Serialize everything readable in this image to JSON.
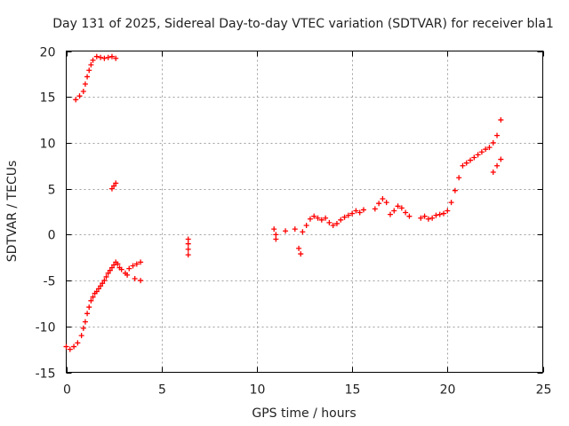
{
  "chart_data": {
    "type": "scatter",
    "title": "Day 131 of 2025, Sidereal Day-to-day VTEC variation (SDTVAR) for receiver bla1",
    "xlabel": "GPS time / hours",
    "ylabel": "SDTVAR / TECUs",
    "xlim": [
      0,
      25
    ],
    "ylim": [
      -15,
      20
    ],
    "x_ticks": [
      0,
      5,
      10,
      15,
      20,
      25
    ],
    "y_ticks": [
      -15,
      -10,
      -5,
      0,
      5,
      10,
      15,
      20
    ],
    "x_tick_labels": [
      "0",
      "5",
      "10",
      "15",
      "20",
      "25"
    ],
    "y_tick_labels": [
      "-15",
      "-10",
      "-5",
      "0",
      "5",
      "10",
      "15",
      "20"
    ],
    "grid": true,
    "marker": "plus",
    "series": [
      {
        "name": "SDTVAR",
        "color": "#ff0000",
        "x": [
          0.0,
          0.2,
          0.4,
          0.6,
          0.8,
          0.9,
          1.0,
          1.1,
          1.2,
          1.3,
          1.4,
          1.5,
          1.6,
          1.7,
          1.8,
          1.9,
          2.0,
          2.1,
          2.2,
          2.3,
          2.4,
          2.5,
          2.6,
          0.5,
          0.7,
          0.9,
          1.0,
          1.1,
          1.2,
          1.3,
          1.4,
          1.6,
          1.8,
          2.0,
          2.2,
          2.4,
          2.6,
          2.4,
          2.5,
          2.6,
          2.7,
          2.9,
          3.1,
          3.3,
          3.5,
          3.7,
          3.9,
          2.8,
          3.2,
          3.6,
          3.9,
          6.4,
          6.4,
          6.4,
          6.4,
          10.9,
          11.0,
          11.0,
          11.5,
          12.0,
          12.2,
          12.3,
          12.4,
          12.6,
          12.8,
          13.0,
          13.2,
          13.4,
          13.6,
          13.8,
          14.0,
          14.2,
          14.4,
          14.6,
          14.8,
          15.0,
          15.2,
          15.4,
          15.6,
          16.2,
          16.4,
          16.6,
          16.8,
          17.0,
          17.2,
          17.4,
          17.6,
          17.8,
          18.0,
          18.6,
          18.8,
          19.0,
          19.2,
          19.4,
          19.6,
          19.8,
          20.0,
          20.2,
          20.4,
          20.6,
          20.8,
          21.0,
          21.2,
          21.4,
          21.6,
          21.8,
          22.0,
          22.2,
          22.4,
          22.6,
          22.8,
          22.4,
          22.6,
          22.8
        ],
        "y": [
          -12.2,
          -12.5,
          -12.2,
          -11.8,
          -11.0,
          -10.2,
          -9.5,
          -8.6,
          -7.9,
          -7.2,
          -6.8,
          -6.4,
          -6.2,
          -5.9,
          -5.6,
          -5.3,
          -5.0,
          -4.6,
          -4.2,
          -3.9,
          -3.6,
          -3.3,
          -3.0,
          14.7,
          15.1,
          15.6,
          16.4,
          17.2,
          17.9,
          18.5,
          19.0,
          19.4,
          19.3,
          19.2,
          19.3,
          19.4,
          19.2,
          5.0,
          5.3,
          5.6,
          -3.2,
          -3.8,
          -4.2,
          -3.7,
          -3.4,
          -3.2,
          -3.0,
          -3.6,
          -4.4,
          -4.8,
          -5.0,
          -0.5,
          -1.0,
          -1.6,
          -2.2,
          0.6,
          0.0,
          -0.5,
          0.4,
          0.6,
          -1.5,
          -2.1,
          0.3,
          1.0,
          1.7,
          2.0,
          1.8,
          1.6,
          1.8,
          1.3,
          1.0,
          1.2,
          1.6,
          1.9,
          2.1,
          2.3,
          2.6,
          2.4,
          2.7,
          2.8,
          3.4,
          3.9,
          3.5,
          2.2,
          2.6,
          3.1,
          2.9,
          2.4,
          2.0,
          1.8,
          2.0,
          1.7,
          1.8,
          2.1,
          2.2,
          2.3,
          2.6,
          3.5,
          4.8,
          6.2,
          7.5,
          7.8,
          8.1,
          8.4,
          8.7,
          9.0,
          9.3,
          9.5,
          10.0,
          10.8,
          12.5,
          6.8,
          7.5,
          8.2
        ]
      }
    ]
  }
}
